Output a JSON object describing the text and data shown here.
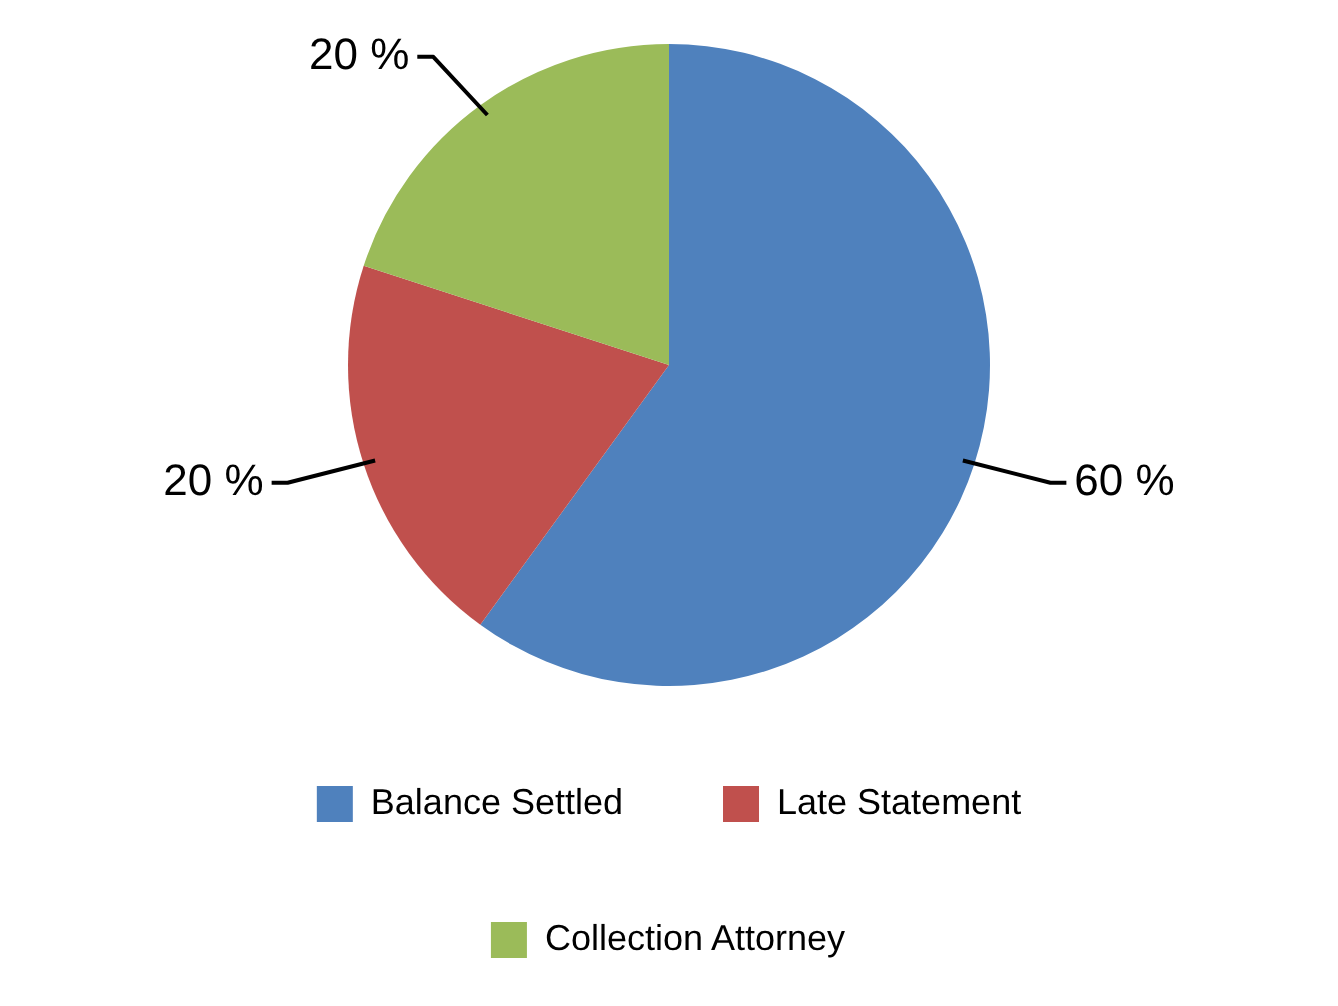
{
  "chart_data": {
    "type": "pie",
    "categories": [
      "Balance Settled",
      "Late Statement",
      "Collection Attorney"
    ],
    "values": [
      60,
      20,
      20
    ],
    "colors": [
      "#4f81bd",
      "#c0504d",
      "#9bbb59"
    ],
    "value_labels": [
      "60 %",
      "20 %",
      "20 %"
    ],
    "legend": "bottom"
  }
}
